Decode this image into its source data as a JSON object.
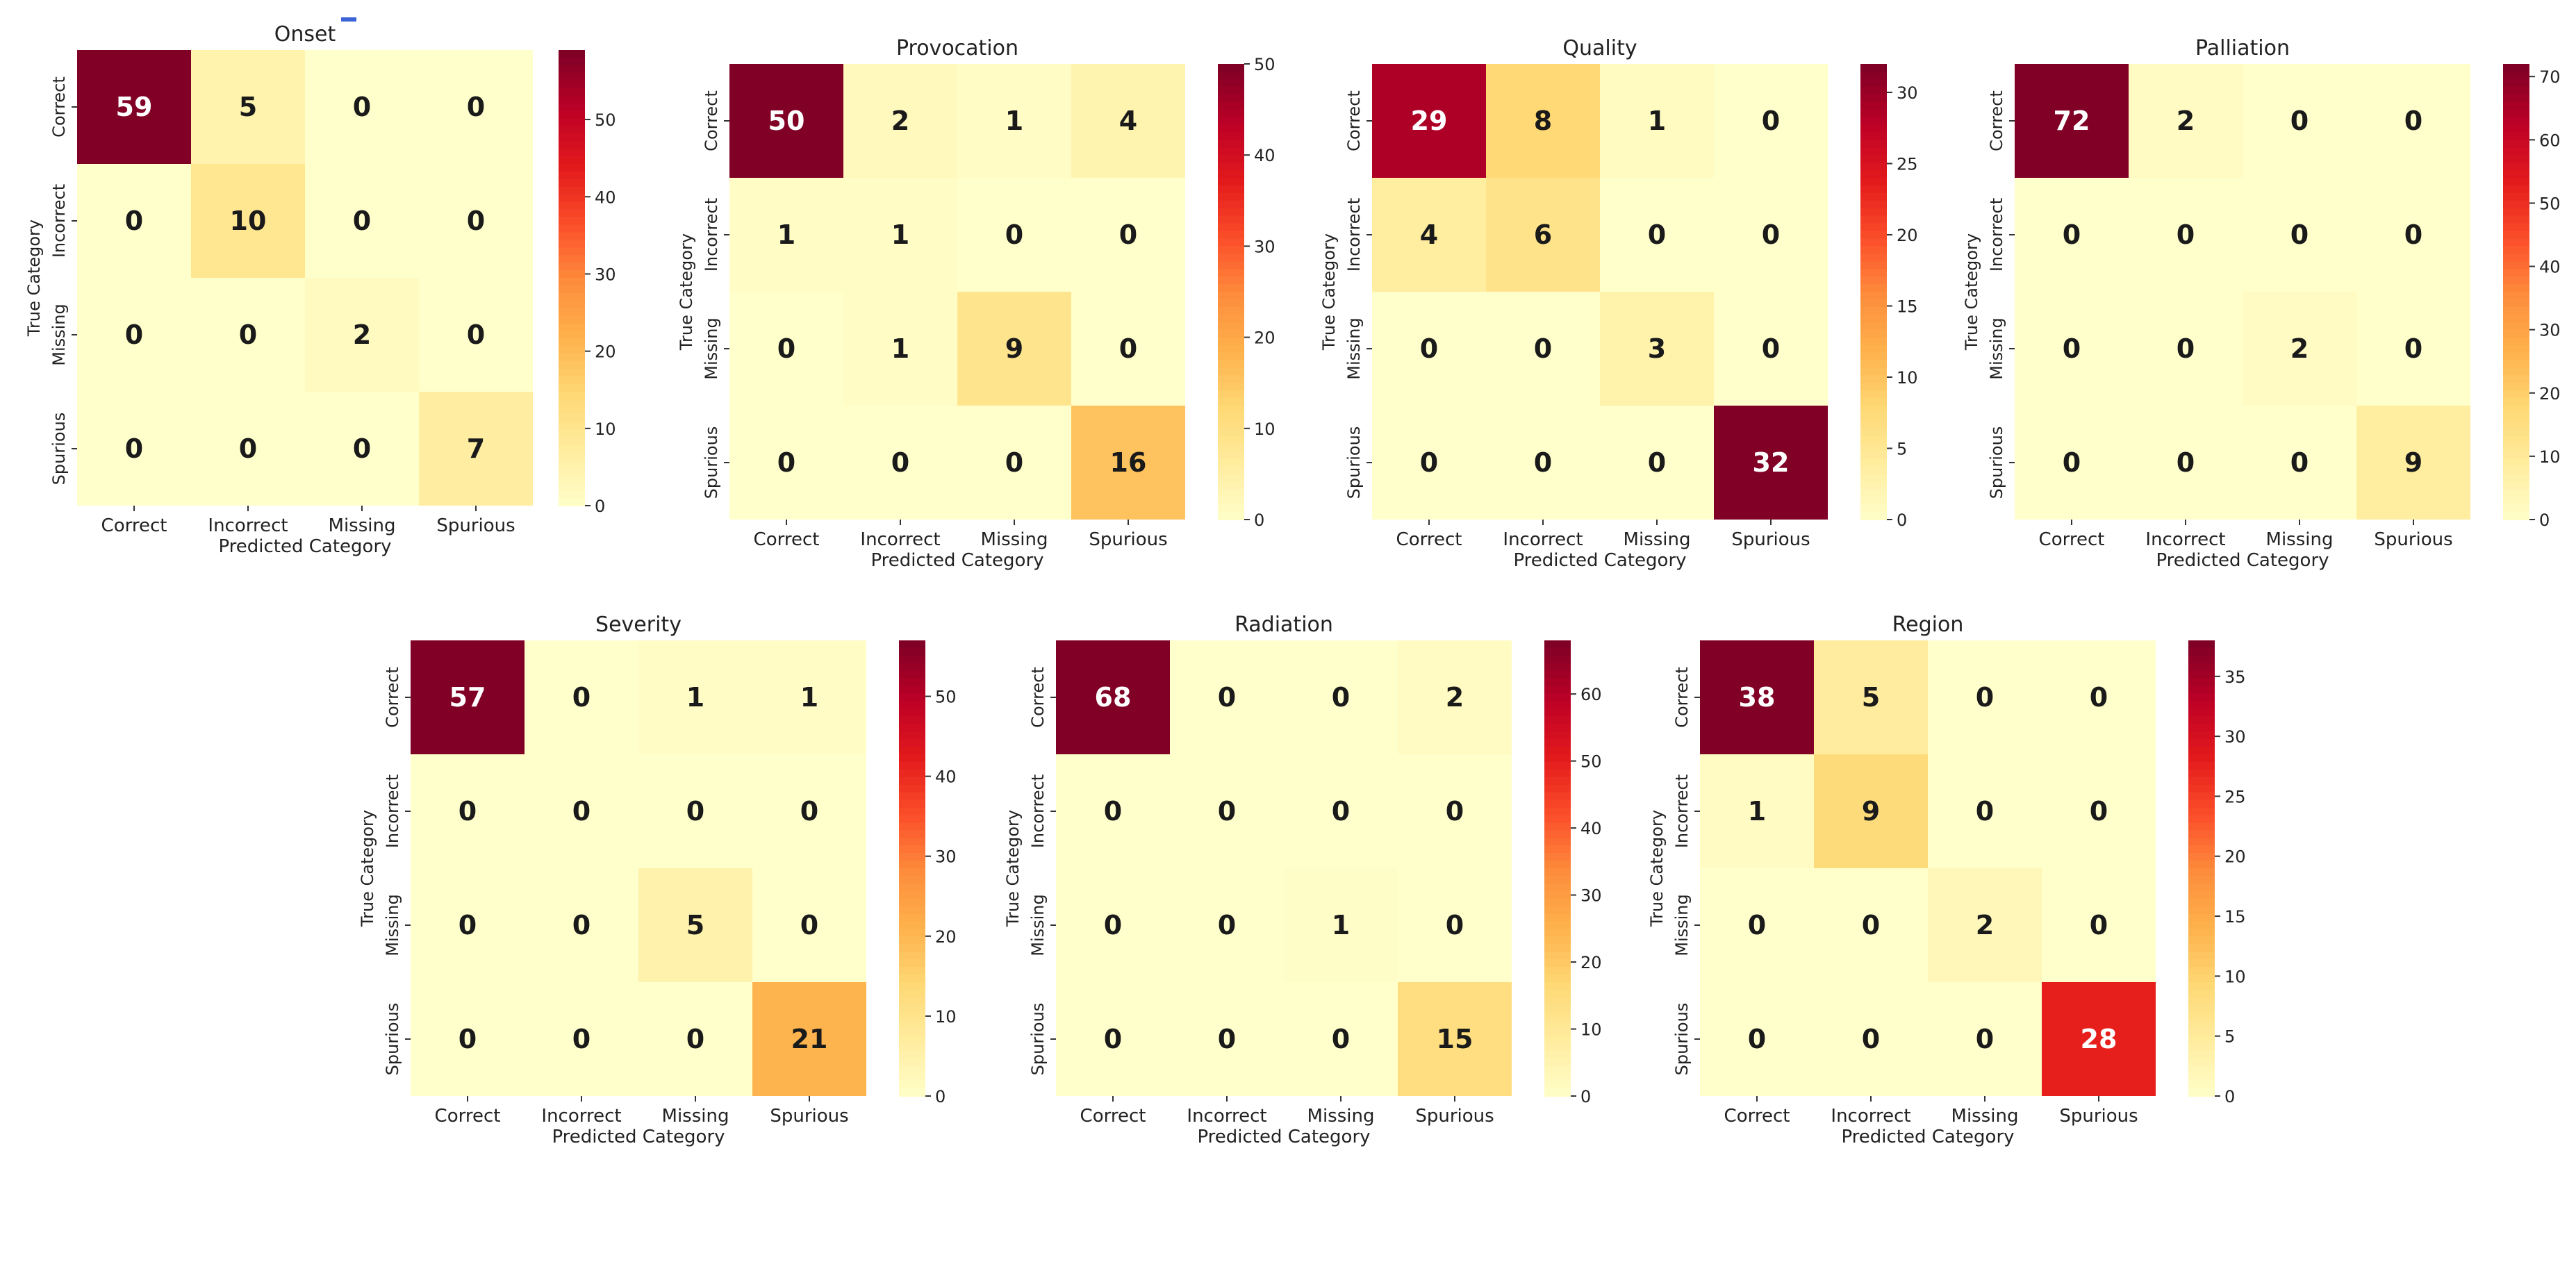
{
  "colors": {
    "scale": [
      "#ffffcc",
      "#ffeda0",
      "#fed976",
      "#feb24c",
      "#fd8d3c",
      "#fc4e2a",
      "#e31a1c",
      "#bd0026",
      "#800026"
    ],
    "dark_text": "#1a1a1a",
    "light_text": "#ffffff",
    "top_marker": "#3b63d6"
  },
  "chart_data": [
    {
      "type": "heatmap",
      "title": "Onset",
      "xlabel": "Predicted Category",
      "ylabel": "True Category",
      "x_categories": [
        "Correct",
        "Incorrect",
        "Missing",
        "Spurious"
      ],
      "y_categories": [
        "Correct",
        "Incorrect",
        "Missing",
        "Spurious"
      ],
      "values": [
        [
          59,
          5,
          0,
          0
        ],
        [
          0,
          10,
          0,
          0
        ],
        [
          0,
          0,
          2,
          0
        ],
        [
          0,
          0,
          0,
          7
        ]
      ],
      "vmin": 0,
      "vmax": 59,
      "colorbar_ticks": [
        0,
        10,
        20,
        30,
        40,
        50
      ]
    },
    {
      "type": "heatmap",
      "title": "Provocation",
      "xlabel": "Predicted Category",
      "ylabel": "True Category",
      "x_categories": [
        "Correct",
        "Incorrect",
        "Missing",
        "Spurious"
      ],
      "y_categories": [
        "Correct",
        "Incorrect",
        "Missing",
        "Spurious"
      ],
      "values": [
        [
          50,
          2,
          1,
          4
        ],
        [
          1,
          1,
          0,
          0
        ],
        [
          0,
          1,
          9,
          0
        ],
        [
          0,
          0,
          0,
          16
        ]
      ],
      "vmin": 0,
      "vmax": 50,
      "colorbar_ticks": [
        0,
        10,
        20,
        30,
        40,
        50
      ]
    },
    {
      "type": "heatmap",
      "title": "Quality",
      "xlabel": "Predicted Category",
      "ylabel": "True Category",
      "x_categories": [
        "Correct",
        "Incorrect",
        "Missing",
        "Spurious"
      ],
      "y_categories": [
        "Correct",
        "Incorrect",
        "Missing",
        "Spurious"
      ],
      "values": [
        [
          29,
          8,
          1,
          0
        ],
        [
          4,
          6,
          0,
          0
        ],
        [
          0,
          0,
          3,
          0
        ],
        [
          0,
          0,
          0,
          32
        ]
      ],
      "vmin": 0,
      "vmax": 32,
      "colorbar_ticks": [
        0,
        5,
        10,
        15,
        20,
        25,
        30
      ]
    },
    {
      "type": "heatmap",
      "title": "Palliation",
      "xlabel": "Predicted Category",
      "ylabel": "True Category",
      "x_categories": [
        "Correct",
        "Incorrect",
        "Missing",
        "Spurious"
      ],
      "y_categories": [
        "Correct",
        "Incorrect",
        "Missing",
        "Spurious"
      ],
      "values": [
        [
          72,
          2,
          0,
          0
        ],
        [
          0,
          0,
          0,
          0
        ],
        [
          0,
          0,
          2,
          0
        ],
        [
          0,
          0,
          0,
          9
        ]
      ],
      "vmin": 0,
      "vmax": 72,
      "colorbar_ticks": [
        0,
        10,
        20,
        30,
        40,
        50,
        60,
        70
      ]
    },
    {
      "type": "heatmap",
      "title": "Severity",
      "xlabel": "Predicted Category",
      "ylabel": "True Category",
      "x_categories": [
        "Correct",
        "Incorrect",
        "Missing",
        "Spurious"
      ],
      "y_categories": [
        "Correct",
        "Incorrect",
        "Missing",
        "Spurious"
      ],
      "values": [
        [
          57,
          0,
          1,
          1
        ],
        [
          0,
          0,
          0,
          0
        ],
        [
          0,
          0,
          5,
          0
        ],
        [
          0,
          0,
          0,
          21
        ]
      ],
      "vmin": 0,
      "vmax": 57,
      "colorbar_ticks": [
        0,
        10,
        20,
        30,
        40,
        50
      ]
    },
    {
      "type": "heatmap",
      "title": "Radiation",
      "xlabel": "Predicted Category",
      "ylabel": "True Category",
      "x_categories": [
        "Correct",
        "Incorrect",
        "Missing",
        "Spurious"
      ],
      "y_categories": [
        "Correct",
        "Incorrect",
        "Missing",
        "Spurious"
      ],
      "values": [
        [
          68,
          0,
          0,
          2
        ],
        [
          0,
          0,
          0,
          0
        ],
        [
          0,
          0,
          1,
          0
        ],
        [
          0,
          0,
          0,
          15
        ]
      ],
      "vmin": 0,
      "vmax": 68,
      "colorbar_ticks": [
        0,
        10,
        20,
        30,
        40,
        50,
        60
      ]
    },
    {
      "type": "heatmap",
      "title": "Region",
      "xlabel": "Predicted Category",
      "ylabel": "True Category",
      "x_categories": [
        "Correct",
        "Incorrect",
        "Missing",
        "Spurious"
      ],
      "y_categories": [
        "Correct",
        "Incorrect",
        "Missing",
        "Spurious"
      ],
      "values": [
        [
          38,
          5,
          0,
          0
        ],
        [
          1,
          9,
          0,
          0
        ],
        [
          0,
          0,
          2,
          0
        ],
        [
          0,
          0,
          0,
          28
        ]
      ],
      "vmin": 0,
      "vmax": 38,
      "colorbar_ticks": [
        0,
        5,
        10,
        15,
        20,
        25,
        30,
        35
      ]
    }
  ]
}
